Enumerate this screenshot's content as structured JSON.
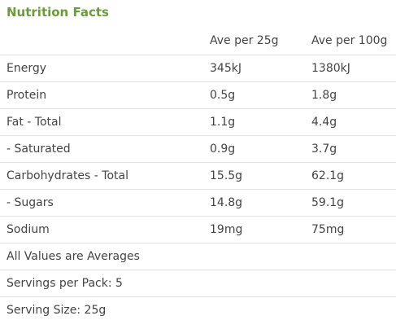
{
  "title": "Nutrition Facts",
  "table": {
    "header": [
      "Ave per 25g",
      "Ave per 100g"
    ],
    "rows": [
      [
        "Energy",
        "345kJ",
        "1380kJ"
      ],
      [
        "Protein",
        "0.5g",
        "1.8g"
      ],
      [
        "Fat - Total",
        "1.1g",
        "4.4g"
      ],
      [
        "- Saturated",
        "0.9g",
        "3.7g"
      ],
      [
        "Carbohydrates - Total",
        "15.5g",
        "62.1g"
      ],
      [
        "- Sugars",
        "14.8g",
        "59.1g"
      ],
      [
        "Sodium",
        "19mg",
        "75mg"
      ]
    ],
    "notes": [
      "All Values are Averages",
      "Servings per Pack: 5",
      "Serving Size: 25g"
    ]
  }
}
